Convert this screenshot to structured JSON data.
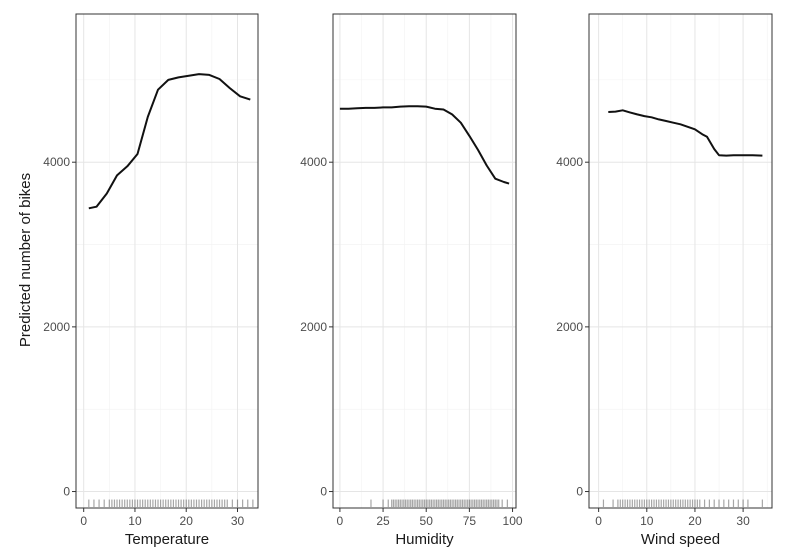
{
  "chart_data": {
    "type": "line",
    "ylabel": "Predicted number of bikes",
    "ylim": [
      -200,
      5800
    ],
    "yticks": [
      0,
      2000,
      4000
    ],
    "grid": true,
    "panels": [
      {
        "xlabel": "Temperature",
        "xlim": [
          -1.5,
          34
        ],
        "xticks": [
          0,
          10,
          20,
          30
        ],
        "series": [
          {
            "x": [
              1,
              2.5,
              4.5,
              6.5,
              8.5,
              10.5,
              12.5,
              14.5,
              16.5,
              18.5,
              20.5,
              22.5,
              24.5,
              26.5,
              28.5,
              30.5,
              32.5
            ],
            "values": [
              3440,
              3460,
              3620,
              3840,
              3950,
              4100,
              4550,
              4880,
              5000,
              5030,
              5050,
              5070,
              5060,
              5010,
              4900,
              4800,
              4760
            ]
          }
        ],
        "rug": [
          1,
          2,
          3,
          4,
          5,
          5.5,
          6,
          6.5,
          7,
          7.5,
          8,
          8.5,
          9,
          9.5,
          10,
          10.5,
          11,
          11.5,
          12,
          12.5,
          13,
          13.5,
          14,
          14.5,
          15,
          15.5,
          16,
          16.5,
          17,
          17.5,
          18,
          18.5,
          19,
          19.5,
          20,
          20.5,
          21,
          21.5,
          22,
          22.5,
          23,
          23.5,
          24,
          24.5,
          25,
          25.5,
          26,
          26.5,
          27,
          27.5,
          28,
          29,
          30,
          31,
          32,
          33
        ]
      },
      {
        "xlabel": "Humidity",
        "xlim": [
          -4,
          102
        ],
        "xticks": [
          0,
          25,
          50,
          75,
          100
        ],
        "series": [
          {
            "x": [
              0,
              5,
              10,
              15,
              20,
              25,
              30,
              35,
              40,
              45,
              50,
              55,
              60,
              65,
              70,
              75,
              80,
              85,
              90,
              95,
              98
            ],
            "values": [
              4650,
              4650,
              4655,
              4660,
              4660,
              4665,
              4665,
              4675,
              4680,
              4680,
              4675,
              4650,
              4640,
              4580,
              4480,
              4320,
              4150,
              3960,
              3800,
              3760,
              3740
            ]
          }
        ],
        "rug": [
          18,
          25,
          28,
          30,
          31,
          32,
          33,
          34,
          35,
          36,
          37,
          38,
          39,
          40,
          41,
          42,
          43,
          44,
          45,
          46,
          47,
          48,
          49,
          50,
          51,
          52,
          53,
          54,
          55,
          56,
          57,
          58,
          59,
          60,
          61,
          62,
          63,
          64,
          65,
          66,
          67,
          68,
          69,
          70,
          71,
          72,
          73,
          74,
          75,
          76,
          77,
          78,
          79,
          80,
          81,
          82,
          83,
          84,
          85,
          86,
          87,
          88,
          89,
          90,
          91,
          92,
          94,
          97
        ]
      },
      {
        "xlabel": "Wind speed",
        "xlim": [
          -2,
          36
        ],
        "xticks": [
          0,
          10,
          20,
          30
        ],
        "series": [
          {
            "x": [
              2,
              3.5,
              5,
              6.5,
              8,
              9.5,
              11,
              12.5,
              14,
              15.5,
              17,
              18.5,
              20,
              21.5,
              22.5,
              24,
              25,
              26.5,
              28,
              30,
              32,
              34
            ],
            "values": [
              4610,
              4615,
              4630,
              4605,
              4580,
              4560,
              4545,
              4520,
              4500,
              4480,
              4460,
              4430,
              4400,
              4340,
              4310,
              4160,
              4085,
              4080,
              4085,
              4085,
              4085,
              4080
            ]
          }
        ],
        "rug": [
          1,
          3,
          4,
          4.5,
          5,
          5.5,
          6,
          6.5,
          7,
          7.5,
          8,
          8.5,
          9,
          9.5,
          10,
          10.5,
          11,
          11.5,
          12,
          12.5,
          13,
          13.5,
          14,
          14.5,
          15,
          15.5,
          16,
          16.5,
          17,
          17.5,
          18,
          18.5,
          19,
          19.5,
          20,
          20.5,
          21,
          22,
          23,
          24,
          25,
          26,
          27,
          28,
          29,
          30,
          31,
          34
        ]
      }
    ]
  }
}
